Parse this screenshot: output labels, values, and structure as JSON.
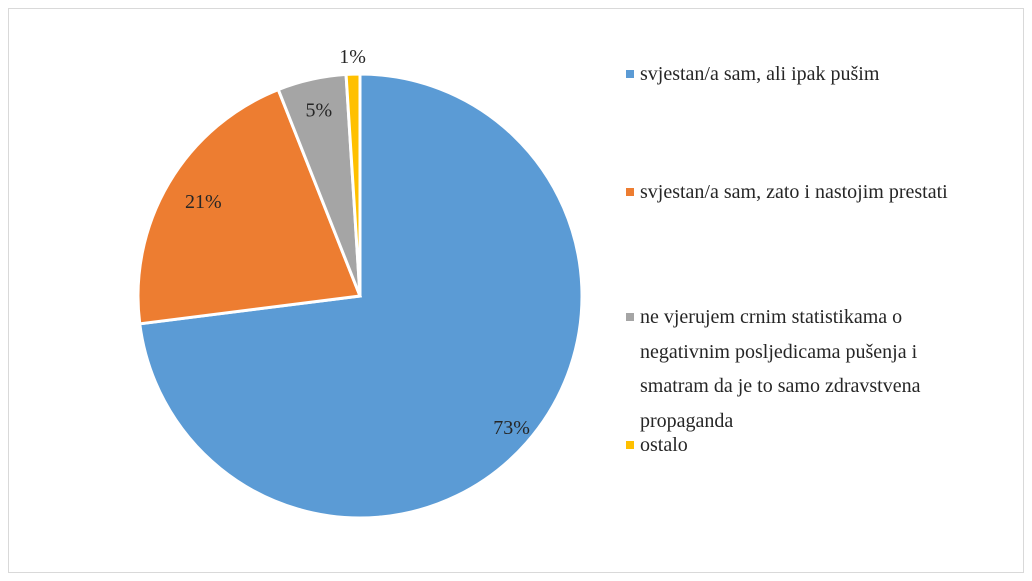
{
  "chart_data": {
    "type": "pie",
    "categories": [
      "svjestan/a sam, ali ipak pušim",
      "svjestan/a sam, zato i nastojim prestati",
      "ne vjerujem crnim statistikama o negativnim posljedicama pušenja i smatram da je to samo zdravstvena propaganda",
      "ostalo"
    ],
    "values": [
      73,
      21,
      5,
      1
    ],
    "value_labels": [
      "73%",
      "21%",
      "5%",
      "1%"
    ],
    "colors": [
      "#5b9bd5",
      "#ed7d31",
      "#a5a5a5",
      "#ffc000"
    ],
    "legend": "right"
  }
}
